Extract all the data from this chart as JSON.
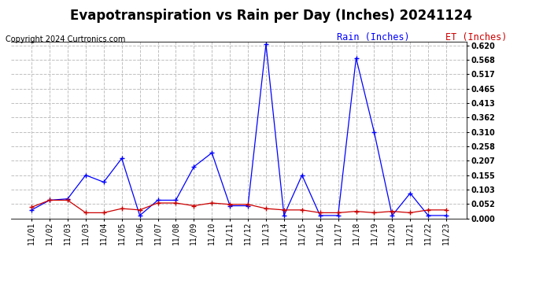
{
  "title": "Evapotranspiration vs Rain per Day (Inches) 20241124",
  "copyright": "Copyright 2024 Curtronics.com",
  "legend_rain": "Rain (Inches)",
  "legend_et": "ET (Inches)",
  "x_labels": [
    "11/01",
    "11/02",
    "11/03",
    "11/03",
    "11/04",
    "11/05",
    "11/06",
    "11/07",
    "11/08",
    "11/09",
    "11/10",
    "11/11",
    "11/12",
    "11/13",
    "11/14",
    "11/15",
    "11/16",
    "11/17",
    "11/18",
    "11/19",
    "11/20",
    "11/21",
    "11/22",
    "11/23"
  ],
  "rain_values": [
    0.03,
    0.065,
    0.07,
    0.155,
    0.13,
    0.215,
    0.01,
    0.065,
    0.065,
    0.185,
    0.235,
    0.045,
    0.045,
    0.625,
    0.01,
    0.155,
    0.01,
    0.01,
    0.575,
    0.31,
    0.01,
    0.09,
    0.01,
    0.01
  ],
  "et_values": [
    0.04,
    0.065,
    0.065,
    0.02,
    0.02,
    0.035,
    0.03,
    0.055,
    0.055,
    0.045,
    0.055,
    0.05,
    0.05,
    0.035,
    0.03,
    0.03,
    0.02,
    0.02,
    0.025,
    0.02,
    0.025,
    0.02,
    0.03,
    0.03
  ],
  "rain_color": "#0000ff",
  "et_color": "#cc0000",
  "ylim_min": 0.0,
  "ylim_max": 0.6355,
  "yticks": [
    0.0,
    0.052,
    0.103,
    0.155,
    0.207,
    0.258,
    0.31,
    0.362,
    0.413,
    0.465,
    0.517,
    0.568,
    0.62
  ],
  "bg_color": "#ffffff",
  "grid_color": "#c0c0c0",
  "title_fontsize": 12,
  "copyright_fontsize": 7,
  "tick_fontsize": 7,
  "legend_fontsize": 8.5
}
